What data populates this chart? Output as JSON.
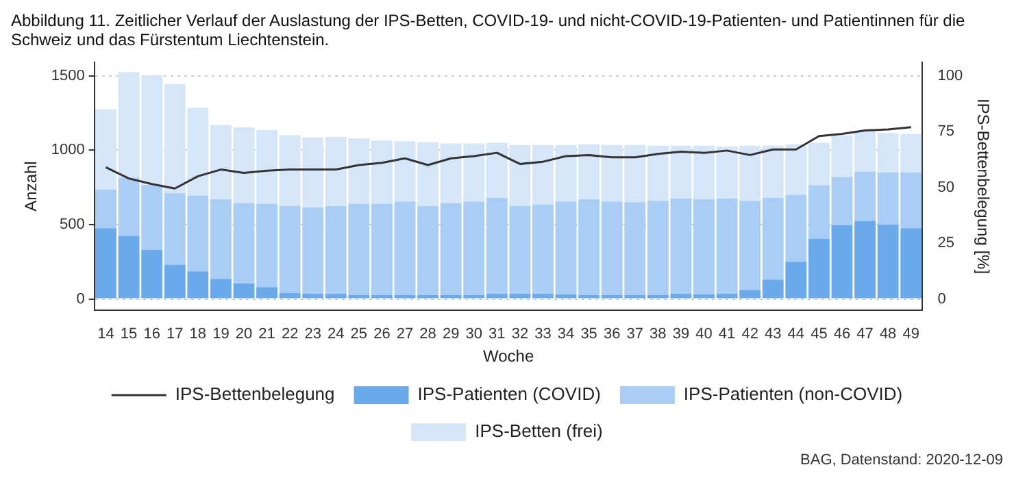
{
  "chart_data": {
    "type": "bar",
    "title": "Abbildung 11. Zeitlicher Verlauf der Auslastung der IPS-Betten, COVID-19- und nicht-COVID-19-Patienten- und Patientinnen für die Schweiz und das Fürstentum Liechtenstein.",
    "xlabel": "Woche",
    "ylabel": "Anzahl",
    "y2label": "IPS-Bettenbelegung [%]",
    "stacked": true,
    "grid": "y",
    "legend": "bottom",
    "categories": [
      "14",
      "15",
      "16",
      "17",
      "18",
      "19",
      "20",
      "21",
      "22",
      "23",
      "24",
      "25",
      "26",
      "27",
      "28",
      "29",
      "30",
      "31",
      "32",
      "33",
      "34",
      "35",
      "36",
      "37",
      "38",
      "39",
      "40",
      "41",
      "42",
      "43",
      "44",
      "45",
      "46",
      "47",
      "48",
      "49"
    ],
    "series": [
      {
        "name": "IPS-Bettenbelegung",
        "type": "line",
        "axis": "y2",
        "color": "#333333",
        "values": [
          59,
          54,
          51.5,
          49.5,
          55,
          58,
          56.5,
          57.5,
          58,
          58,
          58,
          60,
          61,
          63,
          60,
          63,
          64,
          65.5,
          60.5,
          61.5,
          64,
          64.5,
          63.5,
          63.5,
          65,
          66,
          65.5,
          66.5,
          64.5,
          67,
          67,
          73,
          74,
          75.5,
          76,
          77
        ]
      },
      {
        "name": "IPS-Patienten (COVID)",
        "color": "#6aaaec",
        "values": [
          475,
          425,
          330,
          230,
          185,
          135,
          105,
          80,
          40,
          35,
          35,
          25,
          25,
          25,
          25,
          25,
          25,
          35,
          35,
          35,
          30,
          25,
          25,
          25,
          25,
          35,
          30,
          35,
          60,
          130,
          250,
          405,
          495,
          525,
          500,
          475
        ]
      },
      {
        "name": "IPS-Patienten (non-COVID)",
        "color": "#a9cdf4",
        "values": [
          260,
          390,
          435,
          480,
          510,
          535,
          540,
          560,
          585,
          580,
          590,
          615,
          615,
          630,
          600,
          620,
          630,
          645,
          590,
          600,
          625,
          645,
          630,
          625,
          635,
          640,
          640,
          640,
          600,
          550,
          450,
          360,
          325,
          330,
          350,
          375
        ]
      },
      {
        "name": "IPS-Betten (frei)",
        "color": "#d6e6f9",
        "values": [
          540,
          710,
          740,
          735,
          590,
          500,
          510,
          495,
          475,
          470,
          465,
          440,
          425,
          405,
          430,
          400,
          390,
          370,
          410,
          400,
          380,
          370,
          380,
          385,
          370,
          355,
          360,
          350,
          370,
          350,
          340,
          285,
          280,
          275,
          265,
          260
        ]
      }
    ],
    "ylim": [
      -75,
      1590
    ],
    "yticks": [
      0,
      500,
      1000,
      1500
    ],
    "y2lim": [
      -5,
      106
    ],
    "y2ticks": [
      0,
      25,
      50,
      75,
      100
    ],
    "annotations": [
      "BAG, Datenstand: 2020-12-09"
    ]
  }
}
